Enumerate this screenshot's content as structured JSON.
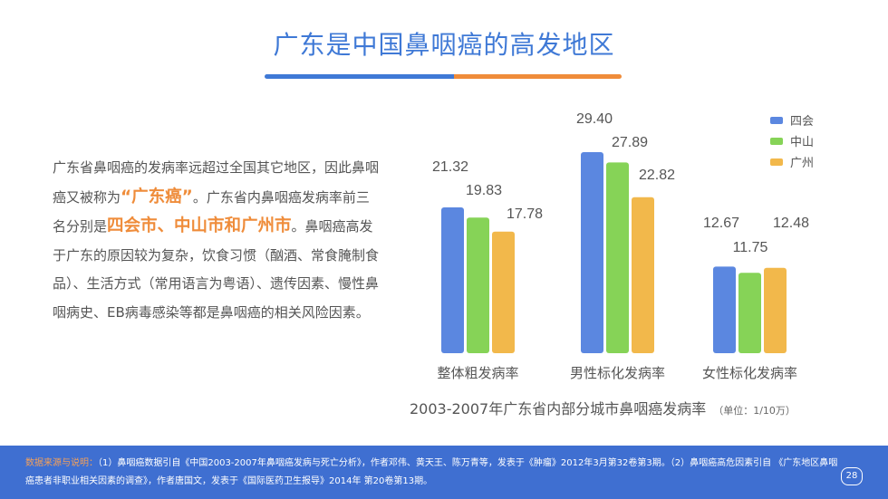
{
  "title": "广东是中国鼻咽癌的高发地区",
  "intro": {
    "p1": "广东省鼻咽癌的发病率远超过全国其它地区，因此鼻咽癌又被称为",
    "h1": "“广东癌”",
    "p2": "。广东省内鼻咽癌发病率前三名分别是",
    "h2": "四会市、中山市和广州市",
    "p3": "。鼻咽癌高发于广东的原因较为复杂，饮食习惯（酗酒、常食腌制食品）、生活方式（常用语言为粤语）、遗传因素、慢性鼻咽病史、EB病毒感染等都是鼻咽癌的相关风险因素。"
  },
  "chart_data": {
    "type": "bar",
    "title": "2003-2007年广东省内部分城市鼻咽癌发病率",
    "unit": "（单位：1/10万）",
    "categories": [
      "整体粗发病率",
      "男性标化发病率",
      "女性标化发病率"
    ],
    "series": [
      {
        "name": "四会",
        "color": "#5b87e0",
        "values": [
          21.32,
          29.4,
          12.67
        ],
        "labels": [
          "21.32",
          "29.40",
          "12.67"
        ]
      },
      {
        "name": "中山",
        "color": "#86d357",
        "values": [
          19.83,
          27.89,
          11.75
        ],
        "labels": [
          "19.83",
          "27.89",
          "11.75"
        ]
      },
      {
        "name": "广州",
        "color": "#f2b84b",
        "values": [
          17.78,
          22.82,
          12.48
        ],
        "labels": [
          "17.78",
          "22.82",
          "12.48"
        ]
      }
    ],
    "grid": false,
    "legend": "top-right"
  },
  "footer": {
    "label": "数据来源与说明：",
    "text": "（1）鼻咽癌数据引自《中国2003-2007年鼻咽癌发病与死亡分析》，作者邓伟、黄天王、陈万青等，发表于《肿瘤》2012年3月第32卷第3期。（2）鼻咽癌高危因素引自 《广东地区鼻咽癌患者非职业相关因素的调查》，作者唐国文，发表于《国际医药卫生报导》2014年 第20卷第13期。",
    "page": "28"
  }
}
